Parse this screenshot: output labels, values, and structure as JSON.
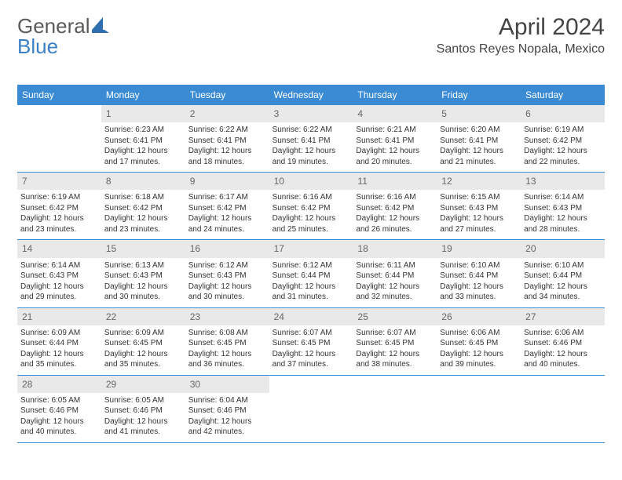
{
  "brand": {
    "part1": "General",
    "part2": "Blue"
  },
  "title": "April 2024",
  "location": "Santos Reyes Nopala, Mexico",
  "accent_color": "#3b8bd4",
  "header_bg": "#e9e9e9",
  "text_color": "#333333",
  "font_family": "Arial",
  "daynum_fontsize": 12,
  "body_fontsize": 10,
  "dow_fontsize": 12,
  "title_fontsize": 30,
  "dow": [
    "Sunday",
    "Monday",
    "Tuesday",
    "Wednesday",
    "Thursday",
    "Friday",
    "Saturday"
  ],
  "weeks": [
    [
      null,
      {
        "n": "1",
        "sr": "6:23 AM",
        "ss": "6:41 PM",
        "dl": "12 hours and 17 minutes."
      },
      {
        "n": "2",
        "sr": "6:22 AM",
        "ss": "6:41 PM",
        "dl": "12 hours and 18 minutes."
      },
      {
        "n": "3",
        "sr": "6:22 AM",
        "ss": "6:41 PM",
        "dl": "12 hours and 19 minutes."
      },
      {
        "n": "4",
        "sr": "6:21 AM",
        "ss": "6:41 PM",
        "dl": "12 hours and 20 minutes."
      },
      {
        "n": "5",
        "sr": "6:20 AM",
        "ss": "6:41 PM",
        "dl": "12 hours and 21 minutes."
      },
      {
        "n": "6",
        "sr": "6:19 AM",
        "ss": "6:42 PM",
        "dl": "12 hours and 22 minutes."
      }
    ],
    [
      {
        "n": "7",
        "sr": "6:19 AM",
        "ss": "6:42 PM",
        "dl": "12 hours and 23 minutes."
      },
      {
        "n": "8",
        "sr": "6:18 AM",
        "ss": "6:42 PM",
        "dl": "12 hours and 23 minutes."
      },
      {
        "n": "9",
        "sr": "6:17 AM",
        "ss": "6:42 PM",
        "dl": "12 hours and 24 minutes."
      },
      {
        "n": "10",
        "sr": "6:16 AM",
        "ss": "6:42 PM",
        "dl": "12 hours and 25 minutes."
      },
      {
        "n": "11",
        "sr": "6:16 AM",
        "ss": "6:42 PM",
        "dl": "12 hours and 26 minutes."
      },
      {
        "n": "12",
        "sr": "6:15 AM",
        "ss": "6:43 PM",
        "dl": "12 hours and 27 minutes."
      },
      {
        "n": "13",
        "sr": "6:14 AM",
        "ss": "6:43 PM",
        "dl": "12 hours and 28 minutes."
      }
    ],
    [
      {
        "n": "14",
        "sr": "6:14 AM",
        "ss": "6:43 PM",
        "dl": "12 hours and 29 minutes."
      },
      {
        "n": "15",
        "sr": "6:13 AM",
        "ss": "6:43 PM",
        "dl": "12 hours and 30 minutes."
      },
      {
        "n": "16",
        "sr": "6:12 AM",
        "ss": "6:43 PM",
        "dl": "12 hours and 30 minutes."
      },
      {
        "n": "17",
        "sr": "6:12 AM",
        "ss": "6:44 PM",
        "dl": "12 hours and 31 minutes."
      },
      {
        "n": "18",
        "sr": "6:11 AM",
        "ss": "6:44 PM",
        "dl": "12 hours and 32 minutes."
      },
      {
        "n": "19",
        "sr": "6:10 AM",
        "ss": "6:44 PM",
        "dl": "12 hours and 33 minutes."
      },
      {
        "n": "20",
        "sr": "6:10 AM",
        "ss": "6:44 PM",
        "dl": "12 hours and 34 minutes."
      }
    ],
    [
      {
        "n": "21",
        "sr": "6:09 AM",
        "ss": "6:44 PM",
        "dl": "12 hours and 35 minutes."
      },
      {
        "n": "22",
        "sr": "6:09 AM",
        "ss": "6:45 PM",
        "dl": "12 hours and 35 minutes."
      },
      {
        "n": "23",
        "sr": "6:08 AM",
        "ss": "6:45 PM",
        "dl": "12 hours and 36 minutes."
      },
      {
        "n": "24",
        "sr": "6:07 AM",
        "ss": "6:45 PM",
        "dl": "12 hours and 37 minutes."
      },
      {
        "n": "25",
        "sr": "6:07 AM",
        "ss": "6:45 PM",
        "dl": "12 hours and 38 minutes."
      },
      {
        "n": "26",
        "sr": "6:06 AM",
        "ss": "6:45 PM",
        "dl": "12 hours and 39 minutes."
      },
      {
        "n": "27",
        "sr": "6:06 AM",
        "ss": "6:46 PM",
        "dl": "12 hours and 40 minutes."
      }
    ],
    [
      {
        "n": "28",
        "sr": "6:05 AM",
        "ss": "6:46 PM",
        "dl": "12 hours and 40 minutes."
      },
      {
        "n": "29",
        "sr": "6:05 AM",
        "ss": "6:46 PM",
        "dl": "12 hours and 41 minutes."
      },
      {
        "n": "30",
        "sr": "6:04 AM",
        "ss": "6:46 PM",
        "dl": "12 hours and 42 minutes."
      },
      null,
      null,
      null,
      null
    ]
  ]
}
